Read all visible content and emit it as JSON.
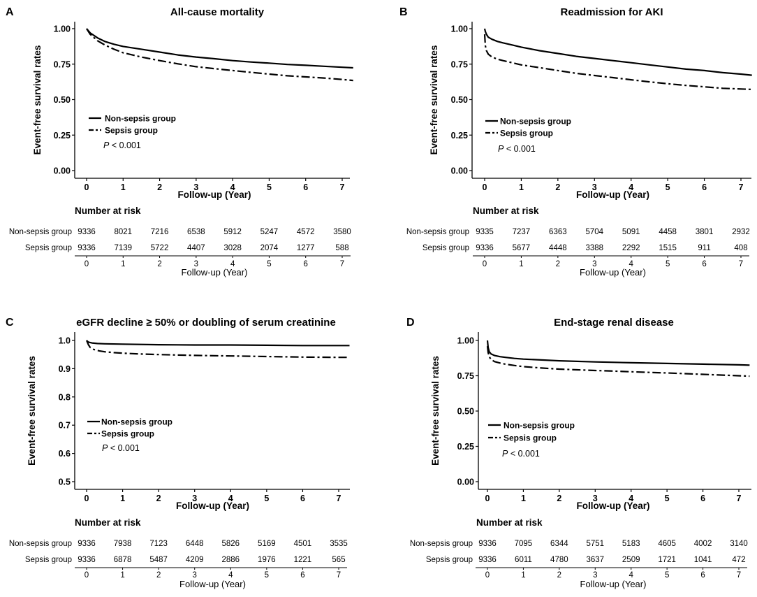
{
  "chart_data": [
    {
      "type": "line",
      "panel_label": "A",
      "title": "All-cause mortality",
      "xlabel": "Follow-up (Year)",
      "ylabel": "Event-free survival rates",
      "xlim": [
        0,
        7.3
      ],
      "ylim": [
        0,
        1
      ],
      "x_ticks": [
        "0",
        "1",
        "2",
        "3",
        "4",
        "5",
        "6",
        "7"
      ],
      "y_ticks": [
        "0.00",
        "0.25",
        "0.50",
        "0.75",
        "1.00"
      ],
      "y_tick_values": [
        0,
        0.25,
        0.5,
        0.75,
        1.0
      ],
      "series": [
        {
          "name": "Non-sepsis group",
          "style": "solid",
          "x": [
            0,
            0.1,
            0.3,
            0.5,
            0.75,
            1,
            1.5,
            2,
            2.5,
            3,
            3.5,
            4,
            4.5,
            5,
            5.5,
            6,
            6.5,
            7,
            7.3
          ],
          "y": [
            1,
            0.97,
            0.935,
            0.91,
            0.89,
            0.875,
            0.855,
            0.835,
            0.815,
            0.8,
            0.788,
            0.775,
            0.765,
            0.757,
            0.748,
            0.742,
            0.735,
            0.728,
            0.724
          ]
        },
        {
          "name": "Sepsis group",
          "style": "dashdot",
          "x": [
            0,
            0.1,
            0.3,
            0.5,
            0.75,
            1,
            1.5,
            2,
            2.5,
            3,
            3.5,
            4,
            4.5,
            5,
            5.5,
            6,
            6.5,
            7,
            7.3
          ],
          "y": [
            1,
            0.96,
            0.915,
            0.885,
            0.855,
            0.83,
            0.8,
            0.775,
            0.752,
            0.732,
            0.718,
            0.705,
            0.692,
            0.68,
            0.668,
            0.66,
            0.652,
            0.642,
            0.635
          ]
        }
      ],
      "legend": [
        "Non-sepsis group",
        "Sepsis group"
      ],
      "p_value": "< 0.001",
      "risk_table": {
        "title": "Number at risk",
        "xlabel": "Follow-up (Year)",
        "x_ticks": [
          "0",
          "1",
          "2",
          "3",
          "4",
          "5",
          "6",
          "7"
        ],
        "rows": [
          {
            "group": "Non-sepsis group",
            "values": [
              "9336",
              "8021",
              "7216",
              "6538",
              "5912",
              "5247",
              "4572",
              "3580"
            ]
          },
          {
            "group": "Sepsis group",
            "values": [
              "9336",
              "7139",
              "5722",
              "4407",
              "3028",
              "2074",
              "1277",
              "588"
            ]
          }
        ]
      }
    },
    {
      "type": "line",
      "panel_label": "B",
      "title": "Readmission for AKI",
      "xlabel": "Follow-up (Year)",
      "ylabel": "Event-free survival rates",
      "xlim": [
        0,
        7.3
      ],
      "ylim": [
        0,
        1
      ],
      "x_ticks": [
        "0",
        "1",
        "2",
        "3",
        "4",
        "5",
        "6",
        "7"
      ],
      "y_ticks": [
        "0.00",
        "0.25",
        "0.50",
        "0.75",
        "1.00"
      ],
      "y_tick_values": [
        0,
        0.25,
        0.5,
        0.75,
        1.0
      ],
      "series": [
        {
          "name": "Non-sepsis group",
          "style": "solid",
          "x": [
            0,
            0.02,
            0.05,
            0.1,
            0.2,
            0.35,
            0.5,
            0.75,
            1,
            1.5,
            2,
            2.5,
            3,
            3.5,
            4,
            4.5,
            5,
            5.5,
            6,
            6.5,
            7,
            7.3
          ],
          "y": [
            1,
            0.98,
            0.96,
            0.94,
            0.925,
            0.91,
            0.9,
            0.885,
            0.87,
            0.845,
            0.825,
            0.805,
            0.79,
            0.775,
            0.76,
            0.745,
            0.73,
            0.715,
            0.705,
            0.69,
            0.68,
            0.672
          ]
        },
        {
          "name": "Sepsis group",
          "style": "dashdot",
          "x": [
            0,
            0.02,
            0.05,
            0.1,
            0.2,
            0.35,
            0.5,
            0.75,
            1,
            1.5,
            2,
            2.5,
            3,
            3.5,
            4,
            4.5,
            5,
            5.5,
            6,
            6.5,
            7,
            7.3
          ],
          "y": [
            0.96,
            0.88,
            0.845,
            0.82,
            0.8,
            0.785,
            0.775,
            0.76,
            0.745,
            0.725,
            0.705,
            0.685,
            0.67,
            0.655,
            0.64,
            0.625,
            0.612,
            0.6,
            0.59,
            0.58,
            0.575,
            0.572
          ]
        }
      ],
      "legend": [
        "Non-sepsis group",
        "Sepsis group"
      ],
      "p_value": "< 0.001",
      "risk_table": {
        "title": "Number at risk",
        "xlabel": "Follow-up (Year)",
        "x_ticks": [
          "0",
          "1",
          "2",
          "3",
          "4",
          "5",
          "6",
          "7"
        ],
        "rows": [
          {
            "group": "Non-sepsis group",
            "values": [
              "9335",
              "7237",
              "6363",
              "5704",
              "5091",
              "4458",
              "3801",
              "2932"
            ]
          },
          {
            "group": "Sepsis group",
            "values": [
              "9336",
              "5677",
              "4448",
              "3388",
              "2292",
              "1515",
              "911",
              "408"
            ]
          }
        ]
      }
    },
    {
      "type": "line",
      "panel_label": "C",
      "title": "eGFR decline ≥ 50% or doubling of serum creatinine",
      "xlabel": "Follow-up (Year)",
      "ylabel": "Event-free survival rates",
      "xlim": [
        0,
        7.3
      ],
      "ylim": [
        0.5,
        1
      ],
      "x_ticks": [
        "0",
        "1",
        "2",
        "3",
        "4",
        "5",
        "6",
        "7"
      ],
      "y_ticks": [
        "0.5",
        "0.6",
        "0.7",
        "0.8",
        "0.9",
        "1.0"
      ],
      "y_tick_values": [
        0.5,
        0.6,
        0.7,
        0.8,
        0.9,
        1.0
      ],
      "series": [
        {
          "name": "Non-sepsis group",
          "style": "solid",
          "x": [
            0,
            0.05,
            0.15,
            0.3,
            0.5,
            1,
            2,
            3,
            4,
            5,
            6,
            7,
            7.3
          ],
          "y": [
            1,
            0.994,
            0.991,
            0.989,
            0.988,
            0.987,
            0.985,
            0.984,
            0.984,
            0.983,
            0.982,
            0.982,
            0.982
          ]
        },
        {
          "name": "Sepsis group",
          "style": "dashdot",
          "x": [
            0,
            0.05,
            0.1,
            0.2,
            0.35,
            0.5,
            0.75,
            1,
            1.5,
            2,
            3,
            4,
            5,
            6,
            7,
            7.3
          ],
          "y": [
            1,
            0.985,
            0.975,
            0.968,
            0.963,
            0.96,
            0.957,
            0.955,
            0.952,
            0.95,
            0.947,
            0.945,
            0.943,
            0.941,
            0.94,
            0.94
          ]
        }
      ],
      "legend": [
        "Non-sepsis group",
        "Sepsis group"
      ],
      "p_value": "< 0.001",
      "risk_table": {
        "title": "Number at risk",
        "xlabel": "Follow-up (Year)",
        "x_ticks": [
          "0",
          "1",
          "2",
          "3",
          "4",
          "5",
          "6",
          "7"
        ],
        "rows": [
          {
            "group": "Non-sepsis group",
            "values": [
              "9336",
              "7938",
              "7123",
              "6448",
              "5826",
              "5169",
              "4501",
              "3535"
            ]
          },
          {
            "group": "Sepsis group",
            "values": [
              "9336",
              "6878",
              "5487",
              "4209",
              "2886",
              "1976",
              "1221",
              "565"
            ]
          }
        ]
      }
    },
    {
      "type": "line",
      "panel_label": "D",
      "title": "End-stage renal disease",
      "xlabel": "Follow-up (Year)",
      "ylabel": "Event-free survival rates",
      "xlim": [
        0,
        7.3
      ],
      "ylim": [
        0,
        1
      ],
      "x_ticks": [
        "0",
        "1",
        "2",
        "3",
        "4",
        "5",
        "6",
        "7"
      ],
      "y_ticks": [
        "0.00",
        "0.25",
        "0.50",
        "0.75",
        "1.00"
      ],
      "y_tick_values": [
        0,
        0.25,
        0.5,
        0.75,
        1.0
      ],
      "series": [
        {
          "name": "Non-sepsis group",
          "style": "solid",
          "x": [
            0,
            0.02,
            0.05,
            0.1,
            0.2,
            0.35,
            0.5,
            0.75,
            1,
            1.5,
            2,
            3,
            4,
            5,
            6,
            7,
            7.3
          ],
          "y": [
            1,
            0.95,
            0.92,
            0.905,
            0.893,
            0.885,
            0.88,
            0.873,
            0.868,
            0.862,
            0.856,
            0.848,
            0.842,
            0.837,
            0.832,
            0.827,
            0.825
          ]
        },
        {
          "name": "Sepsis group",
          "style": "dashdot",
          "x": [
            0,
            0.02,
            0.05,
            0.1,
            0.2,
            0.35,
            0.5,
            0.75,
            1,
            1.5,
            2,
            2.5,
            3,
            3.5,
            4,
            4.5,
            5,
            5.5,
            6,
            6.5,
            7,
            7.3
          ],
          "y": [
            0.96,
            0.915,
            0.885,
            0.865,
            0.85,
            0.84,
            0.832,
            0.823,
            0.815,
            0.805,
            0.797,
            0.792,
            0.787,
            0.783,
            0.778,
            0.774,
            0.77,
            0.765,
            0.76,
            0.755,
            0.75,
            0.747
          ]
        }
      ],
      "legend": [
        "Non-sepsis group",
        "Sepsis group"
      ],
      "p_value": "< 0.001",
      "risk_table": {
        "title": "Number at risk",
        "xlabel": "Follow-up (Year)",
        "x_ticks": [
          "0",
          "1",
          "2",
          "3",
          "4",
          "5",
          "6",
          "7"
        ],
        "rows": [
          {
            "group": "Non-sepsis group",
            "values": [
              "9336",
              "7095",
              "6344",
              "5751",
              "5183",
              "4605",
              "4002",
              "3140"
            ]
          },
          {
            "group": "Sepsis group",
            "values": [
              "9336",
              "6011",
              "4780",
              "3637",
              "2509",
              "1721",
              "1041",
              "472"
            ]
          }
        ]
      }
    }
  ],
  "p_prefix": "P"
}
